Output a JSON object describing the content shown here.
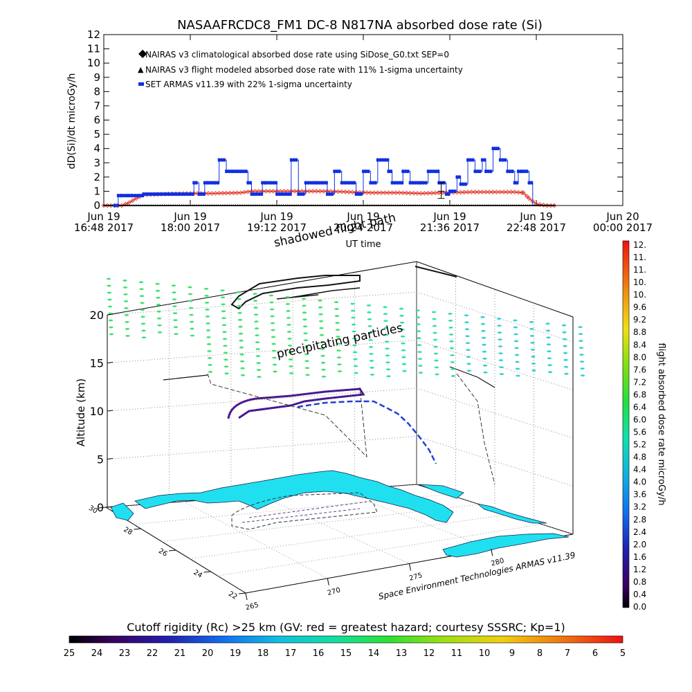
{
  "colors": {
    "nairas_clim": "#e03020",
    "nairas_model": "#000000",
    "armas": "#1030e0",
    "ocean": "#20e0f0",
    "axis": "#000000"
  },
  "chart_data": [
    {
      "type": "line",
      "title": "NASAAFRCDC8_FM1 DC-8   N817NA absorbed dose rate (Si)",
      "ylabel": "dD(Si)/dt microGy/h",
      "xlabel": "UT time",
      "ylim": [
        0,
        12
      ],
      "xlim_hours": [
        16.8,
        24.0
      ],
      "yticks": [
        "0",
        "1",
        "2",
        "3",
        "4",
        "5",
        "6",
        "7",
        "8",
        "9",
        "10",
        "11",
        "12"
      ],
      "xticks": [
        {
          "top": "Jun 19",
          "bottom": "16:48 2017",
          "t": 16.8
        },
        {
          "top": "Jun 19",
          "bottom": "18:00 2017",
          "t": 18.0
        },
        {
          "top": "Jun 19",
          "bottom": "19:12 2017",
          "t": 19.2
        },
        {
          "top": "Jun 19",
          "bottom": "20:24 2017",
          "t": 20.4
        },
        {
          "top": "Jun 19",
          "bottom": "21:36 2017",
          "t": 21.6
        },
        {
          "top": "Jun 19",
          "bottom": "22:48 2017",
          "t": 22.8
        },
        {
          "top": "Jun 20",
          "bottom": "00:00 2017",
          "t": 24.0
        }
      ],
      "legend_position": "top-left",
      "legend": [
        "NAIRAS v3 climatological absorbed dose rate using SiDose_G0.txt SEP=0",
        "NAIRAS v3 flight modeled absorbed dose rate with 11% 1-sigma uncertainty",
        "SET ARMAS v11.39 with 22% 1-sigma uncertainty"
      ],
      "overlay_text": "shadowed flight path",
      "series": [
        {
          "name": "NAIRAS v3 climatological absorbed dose rate using SiDose_G0.txt SEP=0",
          "color": "#e03020",
          "x": [
            16.8,
            17.05,
            17.15,
            17.25,
            17.35,
            17.6,
            18.0,
            18.3,
            18.7,
            18.85,
            19.1,
            19.5,
            19.9,
            20.2,
            20.5,
            20.9,
            21.2,
            21.5,
            21.9,
            22.2,
            22.5,
            22.62,
            22.7,
            22.8,
            22.95,
            23.07
          ],
          "y": [
            0,
            0,
            0.2,
            0.5,
            0.75,
            0.8,
            0.85,
            0.85,
            0.9,
            1.0,
            1.0,
            1.0,
            1.0,
            0.95,
            0.9,
            0.9,
            0.85,
            0.9,
            0.95,
            0.95,
            0.95,
            0.9,
            0.5,
            0.1,
            0,
            0
          ]
        },
        {
          "name": "NAIRAS v3 flight modeled absorbed dose rate with 11% 1-sigma uncertainty",
          "color": "#000000",
          "x": [
            16.8,
            17.5,
            18.5,
            19.5,
            20.5,
            21.5,
            22.5,
            23.07
          ],
          "y": [
            0,
            0,
            0,
            0,
            0,
            0,
            0,
            0
          ]
        },
        {
          "name": "SET ARMAS v11.39 with 22% 1-sigma uncertainty",
          "color": "#1030e0",
          "x": [
            16.95,
            17.0,
            17.05,
            17.15,
            17.2,
            17.35,
            17.6,
            17.85,
            18.0,
            18.05,
            18.12,
            18.2,
            18.25,
            18.35,
            18.4,
            18.5,
            18.6,
            18.8,
            18.85,
            19.0,
            19.05,
            19.2,
            19.25,
            19.4,
            19.5,
            19.6,
            19.75,
            19.9,
            20.0,
            20.1,
            20.3,
            20.4,
            20.5,
            20.6,
            20.75,
            20.8,
            20.95,
            21.05,
            21.2,
            21.3,
            21.45,
            21.55,
            21.6,
            21.7,
            21.75,
            21.85,
            21.95,
            22.05,
            22.1,
            22.2,
            22.3,
            22.4,
            22.5,
            22.55,
            22.6,
            22.7
          ],
          "y": [
            0,
            0.7,
            0.7,
            0.7,
            0.7,
            0.8,
            0.8,
            0.8,
            0.8,
            1.6,
            0.8,
            1.6,
            1.6,
            1.6,
            3.2,
            2.4,
            2.4,
            1.6,
            0.8,
            1.6,
            1.6,
            0.8,
            0.8,
            3.2,
            0.8,
            1.6,
            1.6,
            0.8,
            2.4,
            1.6,
            0.8,
            2.4,
            1.6,
            3.2,
            2.4,
            1.6,
            2.4,
            1.6,
            1.6,
            2.4,
            1.6,
            0.8,
            1.0,
            2.0,
            1.5,
            3.2,
            2.4,
            3.2,
            2.4,
            4.0,
            3.2,
            2.4,
            1.6,
            2.4,
            2.4,
            1.6
          ]
        }
      ]
    },
    {
      "type": "scatter",
      "title": "",
      "zlabel": "Altitude (km)",
      "zticks": [
        "0",
        "5",
        "10",
        "15",
        "20"
      ],
      "lat_ticks": [
        "30",
        "28",
        "26",
        "24",
        "22"
      ],
      "lon_ticks": [
        "265",
        "270",
        "275",
        "280"
      ],
      "annotation_top": "shadowed flight path",
      "annotation_mid": "precipitating particles",
      "credit": "Space Environment Technologies ARMAS v11.39",
      "right_colorbar": {
        "label": "flight absorbed dose rate microGy/h",
        "range": [
          0.0,
          12.0
        ],
        "ticks": [
          "0.0",
          "0.4",
          "0.8",
          "1.2",
          "1.6",
          "2.0",
          "2.4",
          "2.8",
          "3.2",
          "3.6",
          "4.0",
          "4.4",
          "4.8",
          "5.2",
          "5.6",
          "6.0",
          "6.4",
          "6.8",
          "7.2",
          "7.6",
          "8.0",
          "8.4",
          "8.8",
          "9.2",
          "9.6",
          "10.",
          "10.",
          "11.",
          "11.",
          "12."
        ]
      },
      "bottom_colorbar": {
        "label": "Cutoff rigidity (Rc) >25 km (GV: red = greatest hazard; courtesy SSSRC; Kp=1)",
        "ticks": [
          "25",
          "24",
          "23",
          "22",
          "21",
          "20",
          "19",
          "18",
          "17",
          "16",
          "15",
          "14",
          "13",
          "12",
          "11",
          "10",
          "9",
          "8",
          "7",
          "6",
          "5"
        ]
      }
    }
  ]
}
